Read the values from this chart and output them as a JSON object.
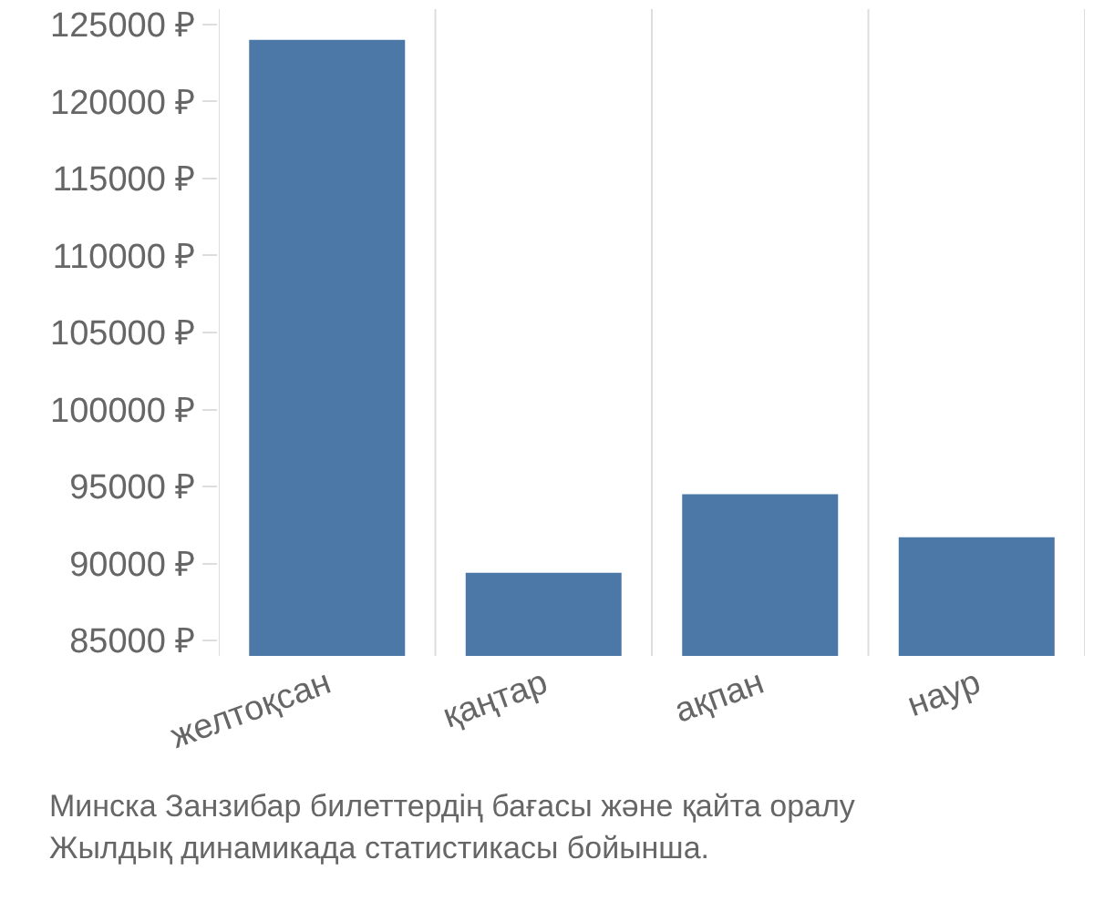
{
  "chart_data": {
    "type": "bar",
    "categories": [
      "желтоқсан",
      "қаңтар",
      "ақпан",
      "наур"
    ],
    "values": [
      124000,
      89400,
      94500,
      91700
    ],
    "color": "#4c78a8",
    "ylim": [
      84000,
      126000
    ],
    "yticks": [
      {
        "value": 85000,
        "label": "85000 ₽"
      },
      {
        "value": 90000,
        "label": "90000 ₽"
      },
      {
        "value": 95000,
        "label": "95000 ₽"
      },
      {
        "value": 100000,
        "label": "100000 ₽"
      },
      {
        "value": 105000,
        "label": "105000 ₽"
      },
      {
        "value": 110000,
        "label": "110000 ₽"
      },
      {
        "value": 115000,
        "label": "115000 ₽"
      },
      {
        "value": 120000,
        "label": "120000 ₽"
      },
      {
        "value": 125000,
        "label": "125000 ₽"
      }
    ],
    "grid": "x",
    "annotations": [
      "Минска Занзибар билеттердің бағасы және қайта оралу",
      "Жылдық динамикада статистикасы бойынша."
    ]
  }
}
